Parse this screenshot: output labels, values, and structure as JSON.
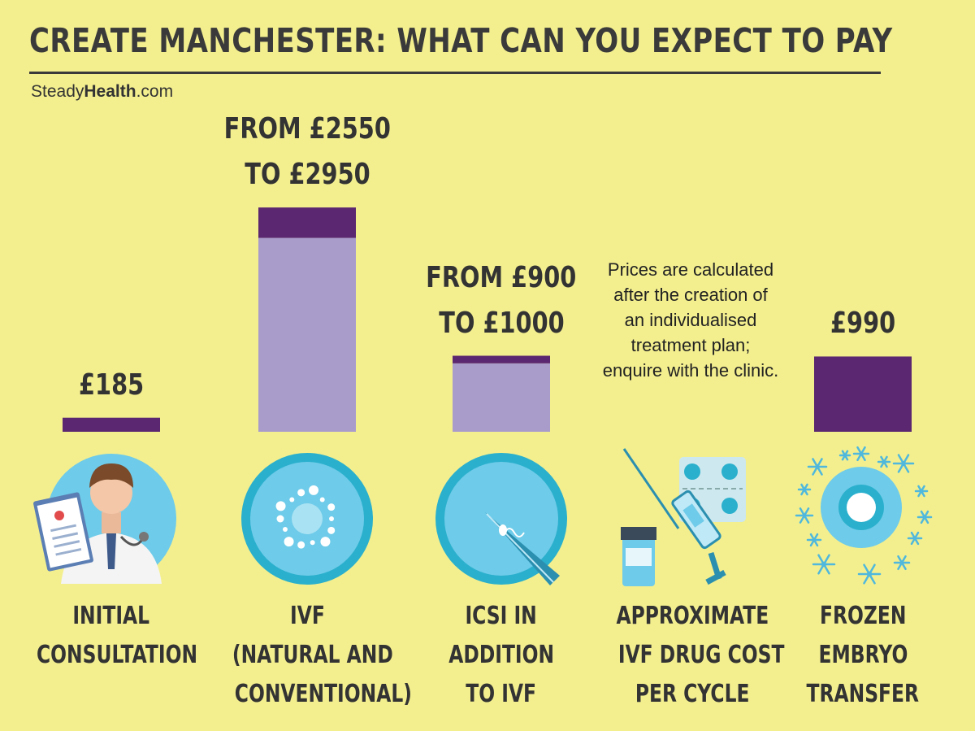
{
  "title": "CREATE MANCHESTER: WHAT CAN YOU EXPECT TO PAY",
  "brand": {
    "prefix": "Steady",
    "bold": "Health",
    "suffix": ".com"
  },
  "note": "Prices are calculated after the creation of an individualised treatment plan; enquire with the clinic.",
  "colors": {
    "background": "#f3ef8f",
    "dark_purple": "#5b2770",
    "light_purple": "#a99ccb",
    "icon_blue": "#6ecbe9",
    "icon_ring": "#2ab0cd"
  },
  "chart_data": {
    "type": "bar",
    "title": "CREATE MANCHESTER: WHAT CAN YOU EXPECT TO PAY",
    "currency": "GBP",
    "categories": [
      "INITIAL CONSULTATION",
      "IVF (NATURAL AND CONVENTIONAL)",
      "ICSI IN ADDITION TO IVF",
      "APPROXIMATE IVF DRUG COST PER CYCLE",
      "FROZEN EMBRYO TRANSFER"
    ],
    "items": [
      {
        "category_lines": [
          "INITIAL",
          "CONSULTATION"
        ],
        "value_lines": [
          "£185"
        ],
        "min": 185,
        "max": 185,
        "icon": "doctor-icon"
      },
      {
        "category_lines": [
          "IVF",
          "(NATURAL AND",
          "CONVENTIONAL)"
        ],
        "value_lines": [
          "FROM £2550",
          "TO £2950"
        ],
        "min": 2550,
        "max": 2950,
        "icon": "ivf-cell-icon"
      },
      {
        "category_lines": [
          "ICSI IN",
          "ADDITION",
          "TO IVF"
        ],
        "value_lines": [
          "FROM £900",
          "TO £1000"
        ],
        "min": 900,
        "max": 1000,
        "icon": "icsi-needle-icon"
      },
      {
        "category_lines": [
          "APPROXIMATE",
          "IVF DRUG COST",
          "PER CYCLE"
        ],
        "value_lines": [],
        "min": null,
        "max": null,
        "icon": "syringe-pills-icon"
      },
      {
        "category_lines": [
          "FROZEN",
          "EMBRYO",
          "TRANSFER"
        ],
        "value_lines": [
          "£990"
        ],
        "min": 990,
        "max": 990,
        "icon": "frozen-embryo-icon"
      }
    ],
    "legend": "none",
    "grid": false
  }
}
